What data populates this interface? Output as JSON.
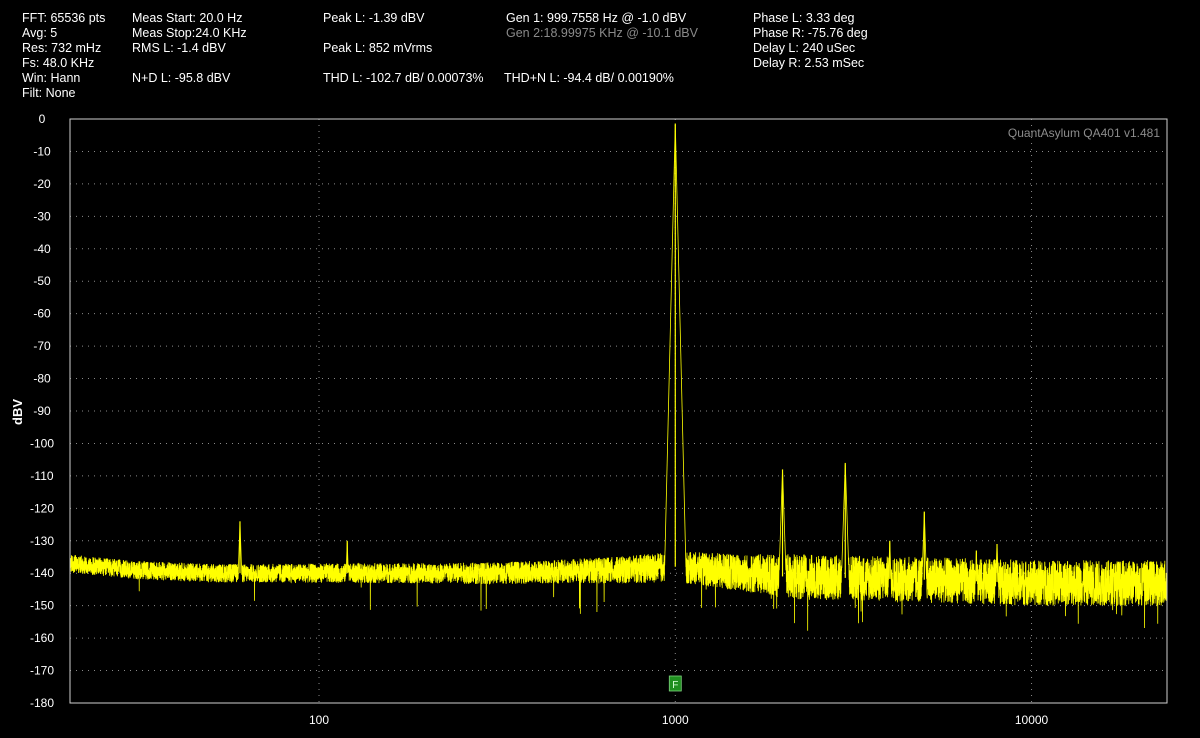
{
  "header": {
    "fft": "FFT: 65536 pts",
    "avg": "Avg: 5",
    "res": "Res: 732 mHz",
    "fs": "Fs: 48.0 KHz",
    "win": "Win: Hann",
    "filt": "Filt: None",
    "meas_start": "Meas Start: 20.0 Hz",
    "meas_stop": "Meas Stop:24.0 KHz",
    "rms_l": "RMS L: -1.4 dBV",
    "nd_l": "N+D L: -95.8 dBV",
    "peak_l_dbv": "Peak L: -1.39 dBV",
    "peak_l_mv": "Peak L: 852 mVrms",
    "thd_l": "THD L: -102.7 dB/ 0.00073%",
    "gen1": "Gen 1: 999.7558 Hz @ -1.0  dBV",
    "gen2": "Gen 2:18.99975 KHz @ -10.1  dBV",
    "thdn_l": "THD+N L: -94.4 dB/ 0.00190%",
    "phase_l": "Phase L: 3.33 deg",
    "phase_r": "Phase R: -75.76 deg",
    "delay_l": "Delay L: 240 uSec",
    "delay_r": "Delay R: 2.53 mSec"
  },
  "brand": "QuantAsylum QA401 v1.481",
  "marker_label": "F",
  "colors": {
    "trace": "#ffff00",
    "grid": "#8a8a8a",
    "marker": "#1f8f1f"
  },
  "chart_data": {
    "type": "line",
    "title": "",
    "xlabel": "",
    "ylabel": "dBV",
    "xscale": "log",
    "xlim": [
      20,
      24000
    ],
    "ylim": [
      -180,
      0
    ],
    "xticks": [
      100,
      1000,
      10000
    ],
    "xtick_labels": [
      "100",
      "1000",
      "10000"
    ],
    "yticks": [
      0,
      -10,
      -20,
      -30,
      -40,
      -50,
      -60,
      -70,
      -80,
      -90,
      -100,
      -110,
      -120,
      -130,
      -140,
      -150,
      -160,
      -170,
      -180
    ],
    "grid": true,
    "series": [
      {
        "noise_floor": [
          [
            20,
            -137
          ],
          [
            30,
            -139
          ],
          [
            50,
            -140
          ],
          [
            100,
            -140
          ],
          [
            300,
            -140
          ],
          [
            700,
            -139
          ],
          [
            1000,
            -138
          ],
          [
            2000,
            -141
          ],
          [
            5000,
            -142
          ],
          [
            10000,
            -143
          ],
          [
            24000,
            -143
          ]
        ],
        "peaks": [
          {
            "x": 60,
            "y": -124
          },
          {
            "x": 120,
            "y": -130
          },
          {
            "x": 1000,
            "y": -1.4
          },
          {
            "x": 2000,
            "y": -108
          },
          {
            "x": 3000,
            "y": -106
          },
          {
            "x": 4000,
            "y": -130
          },
          {
            "x": 5000,
            "y": -121
          },
          {
            "x": 7000,
            "y": -133
          },
          {
            "x": 8000,
            "y": -131
          }
        ]
      }
    ],
    "marker": {
      "x": 1000
    }
  }
}
